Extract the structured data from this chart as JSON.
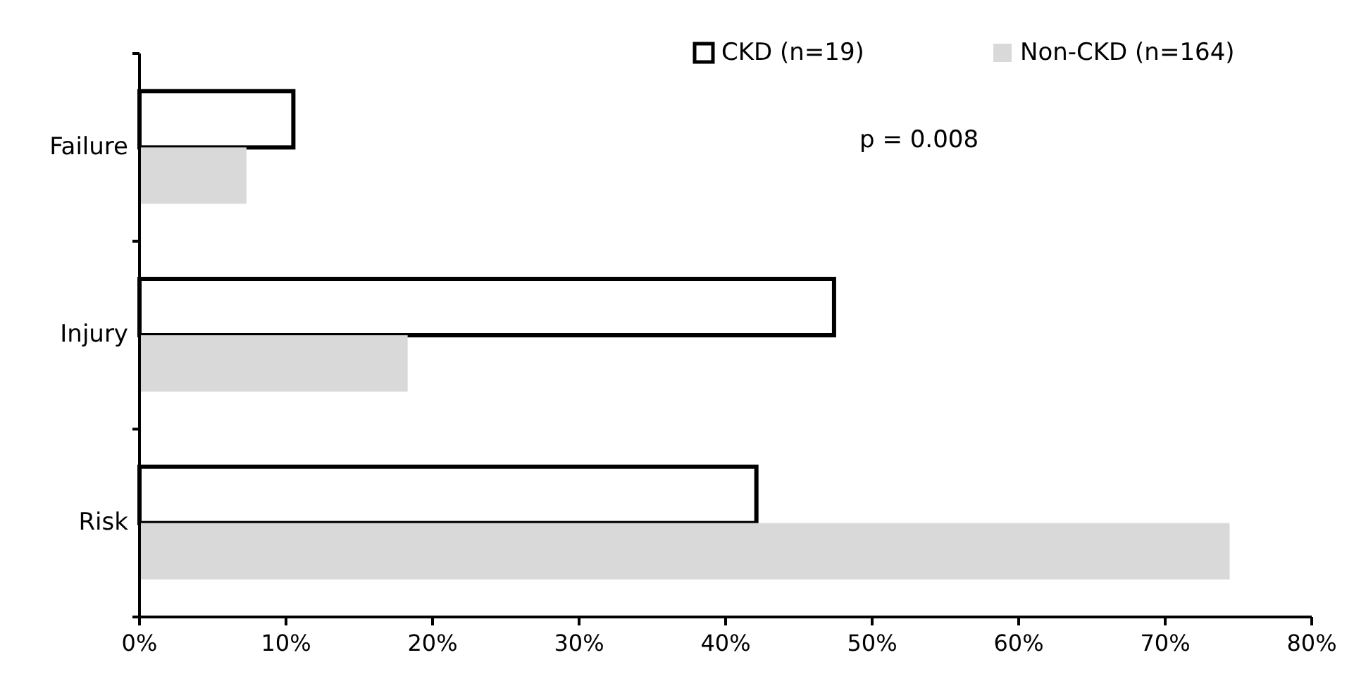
{
  "chart_data": {
    "type": "bar",
    "orientation": "horizontal",
    "categories": [
      "Failure",
      "Injury",
      "Risk"
    ],
    "series": [
      {
        "name": "CKD  (n=19)",
        "color": "#ffffff",
        "values": [
          10.5,
          47.4,
          42.1
        ]
      },
      {
        "name": "Non-CKD (n=164)",
        "color": "#d9d9d9",
        "values": [
          7.3,
          18.3,
          74.4
        ]
      }
    ],
    "xlim": [
      0,
      80
    ],
    "xticks": [
      {
        "value": 0,
        "label": "0%"
      },
      {
        "value": 10,
        "label": "10%"
      },
      {
        "value": 20,
        "label": "20%"
      },
      {
        "value": 30,
        "label": "30%"
      },
      {
        "value": 40,
        "label": "40%"
      },
      {
        "value": 50,
        "label": "50%"
      },
      {
        "value": 60,
        "label": "60%"
      },
      {
        "value": 70,
        "label": "70%"
      },
      {
        "value": 80,
        "label": "80%"
      }
    ],
    "annotations": [
      "p = 0.008"
    ],
    "legend": "top right",
    "grid": false
  }
}
